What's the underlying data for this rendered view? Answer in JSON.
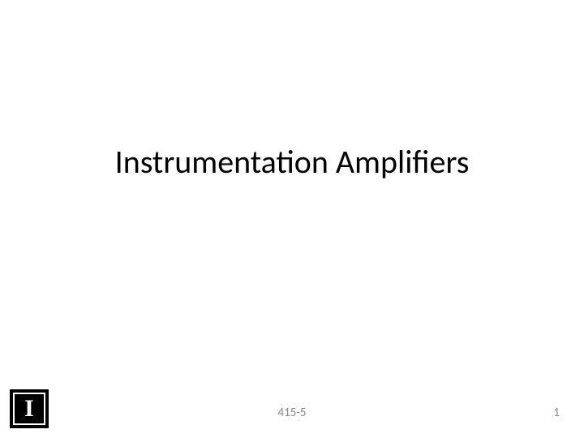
{
  "slide": {
    "title": "Instrumentation Amplifiers",
    "footer_label": "415-5",
    "page_number": "1",
    "logo_letter": "I"
  },
  "style": {
    "background_color": "#ffffff",
    "title_color": "#000000",
    "title_fontsize": 40,
    "footer_color": "#888888",
    "footer_fontsize": 15,
    "logo_bg": "#000000",
    "logo_border": "#ffffff",
    "logo_text_color": "#ffffff"
  }
}
